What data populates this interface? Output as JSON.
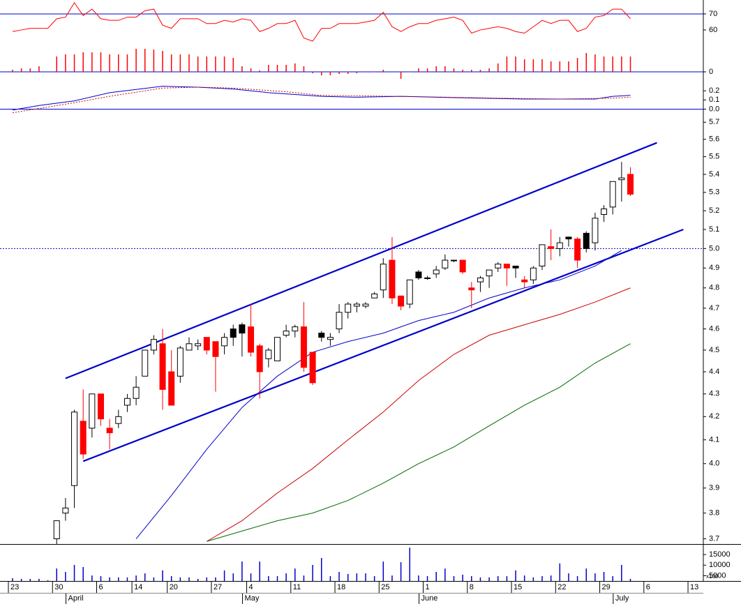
{
  "chart_data": [
    {
      "type": "line",
      "ylim": [
        51.7,
        78.7
      ],
      "yticks": [
        70,
        60
      ],
      "ref_line": 70,
      "ref_color": "#0000cc",
      "series": [
        {
          "color": "#ff0000",
          "values": [
            59,
            60,
            61,
            61,
            61,
            67,
            68,
            77,
            69,
            73,
            67,
            66,
            66,
            68,
            68,
            72,
            73,
            63,
            61,
            67,
            67,
            67,
            64,
            64,
            66,
            65,
            67,
            66,
            59,
            61,
            64,
            64,
            66,
            55,
            53,
            61,
            61,
            64,
            64,
            64,
            65,
            66,
            71,
            62,
            59,
            62,
            64,
            64,
            66,
            67,
            68,
            66,
            58,
            60,
            61,
            62,
            61,
            59,
            58,
            62,
            66,
            64,
            66,
            66,
            59,
            61,
            68,
            69,
            73,
            73,
            67,
            null,
            null,
            null,
            null,
            null,
            null,
            null,
            null,
            null
          ]
        }
      ]
    },
    {
      "type": "bar",
      "ylim": [
        -15,
        43
      ],
      "yticks": [
        0
      ],
      "ref_line": 0,
      "ref_color": "#0000cc",
      "color": "#ff0000",
      "values": [
        3,
        5,
        5,
        8,
        0,
        22,
        25,
        25,
        28,
        28,
        28,
        25,
        25,
        25,
        33,
        33,
        32,
        30,
        25,
        25,
        25,
        22,
        22,
        22,
        22,
        20,
        8,
        5,
        2,
        10,
        10,
        10,
        12,
        8,
        -2,
        -5,
        -5,
        -3,
        -3,
        -2,
        0,
        0,
        3,
        0,
        -10,
        0,
        5,
        5,
        8,
        8,
        5,
        3,
        3,
        3,
        5,
        12,
        22,
        22,
        18,
        18,
        18,
        15,
        15,
        15,
        20,
        27,
        25,
        22,
        22,
        22,
        22,
        null,
        null,
        null,
        null,
        null,
        null,
        null,
        null,
        null
      ]
    },
    {
      "type": "line",
      "ylim": [
        -0.05,
        0.4
      ],
      "yticks": [
        0.2,
        0.1,
        {
          "value": 0,
          "label": "0.0"
        }
      ],
      "ref_line": 0,
      "ref_color": "#0000cc",
      "series": [
        {
          "color": "#0000cc",
          "x": [
            0,
            3,
            7,
            11,
            17,
            21,
            25,
            29,
            35,
            39,
            44,
            48,
            53,
            58,
            62,
            66,
            68,
            70
          ],
          "values": [
            -0.01,
            0.04,
            0.09,
            0.18,
            0.25,
            0.24,
            0.22,
            0.18,
            0.14,
            0.13,
            0.14,
            0.13,
            0.12,
            0.11,
            0.11,
            0.11,
            0.14,
            0.15
          ]
        },
        {
          "color": "#cc0000",
          "dash": true,
          "x": [
            0,
            7,
            11,
            17,
            21,
            25,
            31,
            35,
            44,
            55,
            62,
            68,
            70
          ],
          "values": [
            -0.04,
            0.07,
            0.14,
            0.23,
            0.24,
            0.23,
            0.19,
            0.15,
            0.14,
            0.12,
            0.11,
            0.12,
            0.13
          ]
        }
      ]
    },
    {
      "type": "candlestick",
      "log": true,
      "ylim": [
        3.68,
        5.78
      ],
      "yticks": [
        3.7,
        3.8,
        3.9,
        {
          "value": 4,
          "label": "4.0"
        },
        4.1,
        4.2,
        4.3,
        4.4,
        4.5,
        4.6,
        4.7,
        4.8,
        4.9,
        {
          "value": 5,
          "label": "5.0"
        },
        5.1,
        5.2,
        5.3,
        5.4,
        5.5,
        5.6,
        5.7
      ],
      "ref_line": 5,
      "ref_color": "#0000cc",
      "ref_dash": true,
      "up_color": "#ffffff",
      "down_color": "#ff0000",
      "hold_color": "#000000",
      "open": [
        null,
        null,
        null,
        null,
        null,
        3.7,
        3.8,
        3.91,
        4.18,
        4.15,
        4.3,
        4.15,
        4.17,
        4.25,
        4.28,
        4.38,
        4.5,
        4.53,
        4.4,
        4.38,
        4.5,
        4.52,
        4.56,
        4.54,
        4.52,
        4.6,
        4.62,
        4.61,
        4.52,
        4.46,
        4.45,
        4.57,
        4.59,
        4.61,
        4.49,
        4.58,
        4.55,
        4.6,
        4.68,
        4.71,
        4.71,
        4.75,
        4.79,
        4.94,
        4.76,
        4.72,
        4.88,
        4.85,
        4.87,
        4.9,
        4.94,
        4.94,
        4.8,
        4.83,
        4.86,
        4.9,
        4.92,
        4.91,
        4.84,
        4.84,
        4.91,
        5.01,
        5.0,
        5.06,
        5.05,
        5.08,
        5.03,
        5.18,
        5.22,
        5.37,
        5.4,
        null,
        null,
        null,
        null,
        null,
        null,
        null,
        null,
        null
      ],
      "high": [
        null,
        null,
        null,
        null,
        null,
        3.77,
        3.86,
        4.23,
        4.32,
        4.3,
        4.3,
        4.19,
        4.23,
        4.3,
        4.38,
        4.5,
        4.57,
        4.6,
        4.5,
        4.52,
        4.56,
        4.55,
        4.56,
        4.54,
        4.58,
        4.62,
        4.63,
        4.72,
        4.53,
        4.51,
        4.56,
        4.62,
        4.62,
        4.73,
        4.49,
        4.59,
        4.58,
        4.72,
        4.73,
        4.73,
        4.73,
        4.78,
        4.95,
        5.06,
        4.76,
        4.84,
        4.89,
        4.86,
        4.91,
        4.97,
        4.94,
        4.94,
        4.83,
        4.86,
        4.89,
        4.93,
        4.92,
        4.91,
        4.86,
        4.91,
        5.02,
        5.1,
        5.06,
        5.06,
        5.06,
        5.09,
        5.19,
        5.23,
        5.36,
        5.47,
        5.44,
        null,
        null,
        null,
        null,
        null,
        null,
        null,
        null,
        null
      ],
      "low": [
        null,
        null,
        null,
        null,
        null,
        3.68,
        3.77,
        3.82,
        4.02,
        4.11,
        4.16,
        4.06,
        4.15,
        4.22,
        4.25,
        4.38,
        4.48,
        4.23,
        4.25,
        4.35,
        4.5,
        4.5,
        4.48,
        4.31,
        4.48,
        4.52,
        4.47,
        4.47,
        4.28,
        4.42,
        4.45,
        4.56,
        4.56,
        4.4,
        4.34,
        4.54,
        4.52,
        4.58,
        4.65,
        4.68,
        4.7,
        4.75,
        4.75,
        4.72,
        4.69,
        4.7,
        4.84,
        4.84,
        4.85,
        4.89,
        4.93,
        4.87,
        4.7,
        4.78,
        4.8,
        4.88,
        4.81,
        4.85,
        4.8,
        4.82,
        4.89,
        4.94,
        4.96,
        5.01,
        4.9,
        4.98,
        4.99,
        5.14,
        5.18,
        5.25,
        5.28,
        null,
        null,
        null,
        null,
        null,
        null,
        null,
        null,
        null
      ],
      "close": [
        null,
        null,
        null,
        null,
        null,
        3.77,
        3.82,
        4.22,
        4.04,
        4.3,
        4.19,
        4.13,
        4.2,
        4.28,
        4.33,
        4.5,
        4.55,
        4.32,
        4.25,
        4.51,
        4.53,
        4.53,
        4.5,
        4.47,
        4.56,
        4.56,
        4.58,
        4.49,
        4.4,
        4.5,
        4.56,
        4.59,
        4.61,
        4.42,
        4.35,
        4.56,
        4.56,
        4.68,
        4.72,
        4.72,
        4.72,
        4.77,
        4.92,
        4.75,
        4.71,
        4.84,
        4.85,
        4.85,
        4.89,
        4.94,
        4.94,
        4.88,
        4.79,
        4.85,
        4.89,
        4.92,
        4.9,
        4.9,
        4.83,
        4.9,
        5.02,
        5.0,
        5.03,
        5.05,
        4.94,
        5.0,
        5.16,
        5.21,
        5.36,
        5.38,
        5.29,
        null,
        null,
        null,
        null,
        null,
        null,
        null,
        null,
        null
      ],
      "series": [
        {
          "color": "#0000cc",
          "x": [
            14,
            18,
            22,
            26,
            30,
            34,
            38,
            42,
            46,
            50,
            54,
            58,
            62,
            66,
            69
          ],
          "values": [
            3.7,
            3.87,
            4.06,
            4.24,
            4.38,
            4.49,
            4.54,
            4.58,
            4.64,
            4.68,
            4.75,
            4.8,
            4.84,
            4.91,
            4.99
          ]
        },
        {
          "color": "#cc0000",
          "x": [
            22,
            26,
            30,
            34,
            38,
            42,
            46,
            50,
            54,
            58,
            62,
            66,
            70
          ],
          "values": [
            3.69,
            3.77,
            3.88,
            3.98,
            4.1,
            4.22,
            4.36,
            4.48,
            4.57,
            4.62,
            4.67,
            4.73,
            4.8
          ]
        },
        {
          "color": "#006600",
          "x": [
            22,
            26,
            30,
            34,
            38,
            42,
            46,
            50,
            54,
            58,
            62,
            66,
            70
          ],
          "values": [
            3.69,
            3.73,
            3.77,
            3.8,
            3.85,
            3.92,
            4.0,
            4.07,
            4.16,
            4.25,
            4.33,
            4.44,
            4.53
          ]
        }
      ],
      "trendlines": [
        {
          "color": "#0000cc",
          "x": [
            6,
            73
          ],
          "values": [
            4.37,
            5.58
          ]
        },
        {
          "color": "#0000cc",
          "x": [
            8,
            76
          ],
          "values": [
            4.01,
            5.1
          ]
        }
      ]
    },
    {
      "type": "bar",
      "ylim": [
        2500,
        20000
      ],
      "yticks": [
        15000,
        10000,
        5000
      ],
      "unit_label": "x100",
      "color": "#0000cc",
      "values": [
        3800,
        3500,
        3500,
        3500,
        2800,
        8400,
        6800,
        10100,
        9100,
        5100,
        4800,
        4200,
        4200,
        4200,
        5100,
        6100,
        4200,
        7500,
        4800,
        4200,
        4200,
        3500,
        4200,
        4200,
        7500,
        6100,
        11700,
        6100,
        11700,
        4800,
        4800,
        6100,
        8400,
        5100,
        10100,
        13400,
        4800,
        6800,
        5800,
        6100,
        6100,
        4800,
        11700,
        5100,
        11400,
        18300,
        5100,
        4800,
        6800,
        8400,
        4800,
        5500,
        4800,
        4200,
        4200,
        4800,
        4800,
        7500,
        5100,
        4200,
        4800,
        5100,
        10800,
        6100,
        4800,
        8400,
        6100,
        6800,
        4800,
        10100,
        3500,
        null,
        null,
        null,
        null,
        null,
        null,
        null,
        null,
        null
      ],
      "categories": [
        "23",
        null,
        null,
        null,
        null,
        "30",
        null,
        null,
        null,
        null,
        "6",
        null,
        null,
        null,
        "14",
        null,
        null,
        null,
        "20",
        null,
        null,
        null,
        null,
        "27",
        null,
        null,
        null,
        "4",
        null,
        null,
        null,
        null,
        "11",
        null,
        null,
        null,
        null,
        "18",
        null,
        null,
        null,
        null,
        "25",
        null,
        null,
        null,
        null,
        "1",
        null,
        null,
        null,
        null,
        "8",
        null,
        null,
        null,
        null,
        "15",
        null,
        null,
        null,
        null,
        "22",
        null,
        null,
        null,
        null,
        "29",
        null,
        null,
        null,
        null,
        "6",
        null,
        null,
        null,
        null,
        "13",
        null,
        null
      ],
      "months": [
        null,
        null,
        null,
        null,
        null,
        null,
        null,
        "April",
        null,
        null,
        null,
        null,
        null,
        null,
        null,
        null,
        null,
        null,
        null,
        null,
        null,
        null,
        null,
        null,
        null,
        null,
        null,
        "May",
        null,
        null,
        null,
        null,
        null,
        null,
        null,
        null,
        null,
        null,
        null,
        null,
        null,
        null,
        null,
        null,
        null,
        null,
        null,
        "June",
        null,
        null,
        null,
        null,
        null,
        null,
        null,
        null,
        null,
        null,
        null,
        null,
        null,
        null,
        null,
        null,
        null,
        null,
        null,
        null,
        null,
        "July",
        null,
        null,
        null,
        null,
        null,
        null,
        null,
        null,
        null,
        null
      ]
    }
  ]
}
